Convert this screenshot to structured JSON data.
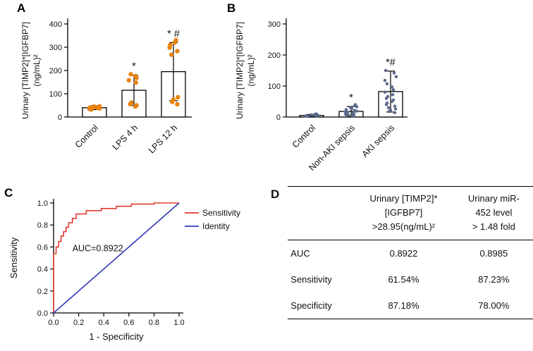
{
  "chart_data": [
    {
      "id": "A",
      "type": "bar",
      "panel_label": "A",
      "ylabel": [
        "Urinary [TIMP2]*[IGFBP7]",
        "(ng/mL)²"
      ],
      "categories": [
        "Control",
        "LPS 4 h",
        "LPS 12 h"
      ],
      "values": [
        40,
        115,
        195
      ],
      "errors": [
        8,
        65,
        125
      ],
      "significance": [
        "",
        "*",
        "* #"
      ],
      "ylim": [
        0,
        400
      ],
      "yticks": [
        0,
        100,
        200,
        300,
        400
      ],
      "bar_fill": "#ffffff",
      "dot_color": "#E8820C",
      "points": [
        [
          32,
          35,
          37,
          39,
          41,
          43,
          45,
          46
        ],
        [
          45,
          50,
          55,
          62,
          148,
          158,
          168,
          176,
          184
        ],
        [
          55,
          65,
          75,
          85,
          268,
          283,
          298,
          310,
          320,
          330
        ]
      ]
    },
    {
      "id": "B",
      "type": "bar",
      "panel_label": "B",
      "ylabel": [
        "Urinary [TIMP2]*[IGFBP7]",
        "(ng/mL)²"
      ],
      "categories": [
        "Control",
        "Non-AKI sepsis",
        "AKI sepsis"
      ],
      "values": [
        5,
        18,
        82
      ],
      "errors": [
        3,
        16,
        66
      ],
      "significance": [
        "",
        "*",
        "*#"
      ],
      "ylim": [
        0,
        300
      ],
      "yticks": [
        0,
        100,
        200,
        300
      ],
      "bar_fill": "#ffffff",
      "dot_color": "#5A688A",
      "points": [
        [
          2,
          3,
          4,
          5,
          5,
          6,
          7,
          8,
          9,
          10
        ],
        [
          2,
          3,
          5,
          6,
          8,
          9,
          11,
          13,
          15,
          17,
          19,
          21,
          24,
          27,
          30,
          33,
          36,
          40
        ],
        [
          14,
          18,
          22,
          26,
          30,
          35,
          40,
          45,
          50,
          55,
          60,
          66,
          72,
          80,
          88,
          97,
          107,
          118,
          130,
          142,
          150
        ]
      ]
    },
    {
      "id": "C",
      "type": "line",
      "panel_label": "C",
      "xlabel": "1 - Specificity",
      "ylabel": "Sensitivity",
      "xlim": [
        0,
        1
      ],
      "ylim": [
        0,
        1
      ],
      "ticks": [
        0,
        0.2,
        0.4,
        0.6,
        0.8,
        1.0
      ],
      "annotation": "AUC=0.8922",
      "annotation_pos": [
        0.15,
        0.56
      ],
      "legend_position": "right-top",
      "series": [
        {
          "name": "Sensitivity",
          "color": "#E03C31",
          "points": [
            [
              0,
              0
            ],
            [
              0,
              0.54
            ],
            [
              0.02,
              0.54
            ],
            [
              0.02,
              0.6
            ],
            [
              0.04,
              0.6
            ],
            [
              0.04,
              0.65
            ],
            [
              0.06,
              0.65
            ],
            [
              0.06,
              0.7
            ],
            [
              0.08,
              0.7
            ],
            [
              0.08,
              0.74
            ],
            [
              0.1,
              0.74
            ],
            [
              0.1,
              0.78
            ],
            [
              0.12,
              0.78
            ],
            [
              0.12,
              0.82
            ],
            [
              0.15,
              0.82
            ],
            [
              0.15,
              0.86
            ],
            [
              0.18,
              0.86
            ],
            [
              0.18,
              0.9
            ],
            [
              0.26,
              0.9
            ],
            [
              0.26,
              0.93
            ],
            [
              0.38,
              0.93
            ],
            [
              0.38,
              0.95
            ],
            [
              0.5,
              0.95
            ],
            [
              0.5,
              0.97
            ],
            [
              0.62,
              0.97
            ],
            [
              0.62,
              0.99
            ],
            [
              0.8,
              0.99
            ],
            [
              0.8,
              1.0
            ],
            [
              1.0,
              1.0
            ]
          ]
        },
        {
          "name": "Identity",
          "color": "#3038B8",
          "points": [
            [
              0,
              0
            ],
            [
              1,
              1
            ]
          ]
        }
      ]
    },
    {
      "id": "D",
      "type": "table",
      "panel_label": "D",
      "col_headers": [
        [
          "Urinary [TIMP2]*[IGFBP7]",
          ">28.95(ng/mL)²"
        ],
        [
          "Urinary miR-452 level",
          "> 1.48 fold"
        ]
      ],
      "rows": [
        [
          "AUC",
          "0.8922",
          "0.8985"
        ],
        [
          "Sensitivity",
          "61.54%",
          "87.23%"
        ],
        [
          "Specificity",
          "87.18%",
          "78.00%"
        ]
      ]
    }
  ]
}
